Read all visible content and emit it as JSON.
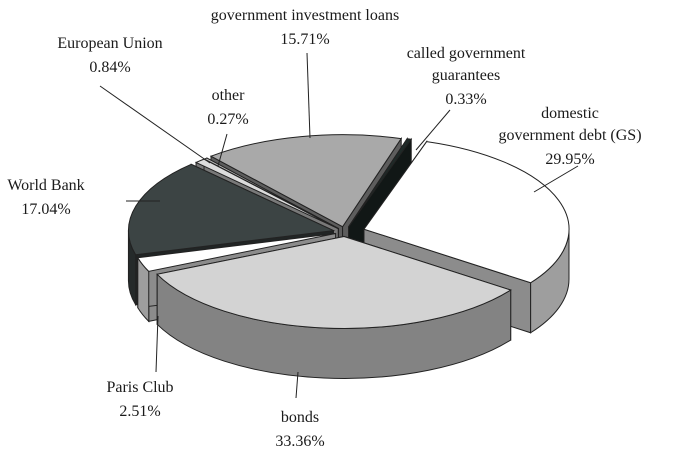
{
  "chart_data": {
    "type": "pie",
    "title": "",
    "slices": [
      {
        "label": "domestic government debt (GS)",
        "value": 29.95,
        "value_label": "29.95%",
        "color": "#ffffff"
      },
      {
        "label": "bonds",
        "value": 33.36,
        "value_label": "33.36%",
        "color": "#d3d3d3"
      },
      {
        "label": "Paris Club",
        "value": 2.51,
        "value_label": "2.51%",
        "color": "#ffffff"
      },
      {
        "label": "World Bank",
        "value": 17.04,
        "value_label": "17.04%",
        "color": "#3c4444"
      },
      {
        "label": "European Union",
        "value": 0.84,
        "value_label": "0.84%",
        "color": "#dcdcdc"
      },
      {
        "label": "other",
        "value": 0.27,
        "value_label": "0.27%",
        "color": "#bdbdbd"
      },
      {
        "label": "government investment loans",
        "value": 15.71,
        "value_label": "15.71%",
        "color": "#a9a9a9"
      },
      {
        "label": "called government guarantees",
        "value": 0.33,
        "value_label": "0.33%",
        "color": "#1f2a28"
      }
    ]
  }
}
